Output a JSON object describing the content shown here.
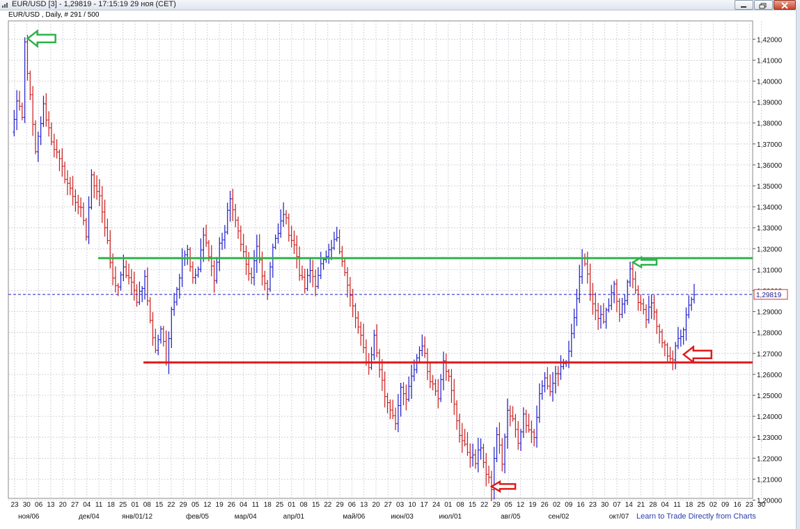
{
  "window": {
    "title": "EUR/USD [3] - 1,29819 - 17:15:19  29 ноя (CET)",
    "subtitle": "EUR/USD , Daily, # 291 / 500"
  },
  "footer_link": "Learn to Trade Directly from Charts",
  "current_price_label": "1,29819",
  "colors": {
    "up": "#1a1ac8",
    "down": "#c81a1a",
    "resistance": "#2fb24a",
    "support": "#e01a1a",
    "grid": "#c8c8d2",
    "current_price": "#1a1acc"
  },
  "chart_data": {
    "type": "ohlc",
    "title": "",
    "ylim": [
      1.2,
      1.425
    ],
    "y_ticks": [
      "1,42000",
      "1,41000",
      "1,40000",
      "1,39000",
      "1,38000",
      "1,37000",
      "1,36000",
      "1,35000",
      "1,34000",
      "1,33000",
      "1,32000",
      "1,31000",
      "1,30000",
      "1,29000",
      "1,28000",
      "1,27000",
      "1,26000",
      "1,25000",
      "1,24000",
      "1,23000",
      "1,22000",
      "1,21000",
      "1,20000"
    ],
    "x_day_labels": [
      "23",
      "30",
      "06",
      "13",
      "20",
      "27",
      "04",
      "11",
      "18",
      "25",
      "01",
      "08",
      "15",
      "22",
      "29",
      "05",
      "12",
      "19",
      "26",
      "04",
      "11",
      "18",
      "25",
      "01",
      "08",
      "15",
      "22",
      "29",
      "06",
      "13",
      "20",
      "27",
      "03",
      "10",
      "17",
      "24",
      "01",
      "08",
      "15",
      "22",
      "29",
      "05",
      "12",
      "19",
      "26",
      "02",
      "09",
      "16",
      "23",
      "30",
      "07",
      "14",
      "21",
      "28",
      "04",
      "11",
      "18",
      "25",
      "02",
      "09",
      "16",
      "23",
      "30"
    ],
    "x_month_labels": [
      "ноя/06",
      "дек/04",
      "янв/01/12",
      "фев/05",
      "мар/04",
      "апр/01",
      "май/06",
      "июн/03",
      "июл/01",
      "авг/05",
      "сен/02",
      "окт/07"
    ],
    "grid": true,
    "current_price": 1.29819,
    "horizontal_lines": [
      {
        "kind": "resistance",
        "y": 1.3155
      },
      {
        "kind": "support",
        "y": 1.2657
      }
    ],
    "arrows": [
      {
        "color": "green",
        "index": 5,
        "y": 1.4203
      },
      {
        "color": "green",
        "index": 232,
        "y": 1.3135
      },
      {
        "color": "red",
        "index": 251,
        "y": 1.2695
      },
      {
        "color": "red",
        "index": 179,
        "y": 1.2065
      }
    ],
    "anchor_closes": [
      [
        0,
        1.375
      ],
      [
        2,
        1.39
      ],
      [
        4,
        1.382
      ],
      [
        5,
        1.418
      ],
      [
        7,
        1.392
      ],
      [
        9,
        1.365
      ],
      [
        12,
        1.388
      ],
      [
        15,
        1.372
      ],
      [
        19,
        1.358
      ],
      [
        22,
        1.348
      ],
      [
        26,
        1.338
      ],
      [
        28,
        1.326
      ],
      [
        30,
        1.354
      ],
      [
        33,
        1.346
      ],
      [
        36,
        1.322
      ],
      [
        38,
        1.305
      ],
      [
        40,
        1.302
      ],
      [
        42,
        1.31
      ],
      [
        44,
        1.306
      ],
      [
        47,
        1.296
      ],
      [
        50,
        1.306
      ],
      [
        52,
        1.285
      ],
      [
        54,
        1.272
      ],
      [
        56,
        1.282
      ],
      [
        58,
        1.266
      ],
      [
        60,
        1.292
      ],
      [
        62,
        1.3
      ],
      [
        64,
        1.316
      ],
      [
        66,
        1.32
      ],
      [
        68,
        1.305
      ],
      [
        70,
        1.31
      ],
      [
        72,
        1.326
      ],
      [
        74,
        1.318
      ],
      [
        76,
        1.305
      ],
      [
        78,
        1.322
      ],
      [
        80,
        1.328
      ],
      [
        82,
        1.345
      ],
      [
        84,
        1.332
      ],
      [
        86,
        1.324
      ],
      [
        88,
        1.312
      ],
      [
        90,
        1.305
      ],
      [
        92,
        1.322
      ],
      [
        94,
        1.305
      ],
      [
        96,
        1.302
      ],
      [
        98,
        1.32
      ],
      [
        100,
        1.327
      ],
      [
        102,
        1.338
      ],
      [
        104,
        1.328
      ],
      [
        106,
        1.322
      ],
      [
        108,
        1.308
      ],
      [
        110,
        1.302
      ],
      [
        112,
        1.31
      ],
      [
        114,
        1.304
      ],
      [
        116,
        1.312
      ],
      [
        118,
        1.315
      ],
      [
        120,
        1.32
      ],
      [
        122,
        1.326
      ],
      [
        124,
        1.315
      ],
      [
        126,
        1.302
      ],
      [
        128,
        1.292
      ],
      [
        130,
        1.282
      ],
      [
        132,
        1.272
      ],
      [
        134,
        1.263
      ],
      [
        136,
        1.278
      ],
      [
        138,
        1.263
      ],
      [
        140,
        1.25
      ],
      [
        142,
        1.244
      ],
      [
        144,
        1.238
      ],
      [
        146,
        1.252
      ],
      [
        148,
        1.248
      ],
      [
        150,
        1.258
      ],
      [
        152,
        1.268
      ],
      [
        154,
        1.275
      ],
      [
        156,
        1.262
      ],
      [
        158,
        1.255
      ],
      [
        160,
        1.25
      ],
      [
        162,
        1.268
      ],
      [
        164,
        1.258
      ],
      [
        166,
        1.245
      ],
      [
        168,
        1.232
      ],
      [
        170,
        1.225
      ],
      [
        172,
        1.222
      ],
      [
        174,
        1.218
      ],
      [
        176,
        1.226
      ],
      [
        178,
        1.212
      ],
      [
        180,
        1.206
      ],
      [
        182,
        1.232
      ],
      [
        184,
        1.218
      ],
      [
        186,
        1.242
      ],
      [
        188,
        1.238
      ],
      [
        190,
        1.228
      ],
      [
        192,
        1.24
      ],
      [
        194,
        1.235
      ],
      [
        196,
        1.23
      ],
      [
        198,
        1.25
      ],
      [
        200,
        1.258
      ],
      [
        202,
        1.252
      ],
      [
        204,
        1.26
      ],
      [
        206,
        1.262
      ],
      [
        208,
        1.265
      ],
      [
        210,
        1.278
      ],
      [
        212,
        1.298
      ],
      [
        214,
        1.316
      ],
      [
        216,
        1.306
      ],
      [
        218,
        1.294
      ],
      [
        220,
        1.288
      ],
      [
        222,
        1.286
      ],
      [
        224,
        1.292
      ],
      [
        226,
        1.302
      ],
      [
        228,
        1.288
      ],
      [
        230,
        1.296
      ],
      [
        232,
        1.31
      ],
      [
        234,
        1.3
      ],
      [
        236,
        1.292
      ],
      [
        238,
        1.288
      ],
      [
        240,
        1.295
      ],
      [
        242,
        1.282
      ],
      [
        244,
        1.275
      ],
      [
        246,
        1.27
      ],
      [
        248,
        1.268
      ],
      [
        250,
        1.276
      ],
      [
        252,
        1.282
      ],
      [
        254,
        1.292
      ],
      [
        256,
        1.298
      ]
    ]
  }
}
